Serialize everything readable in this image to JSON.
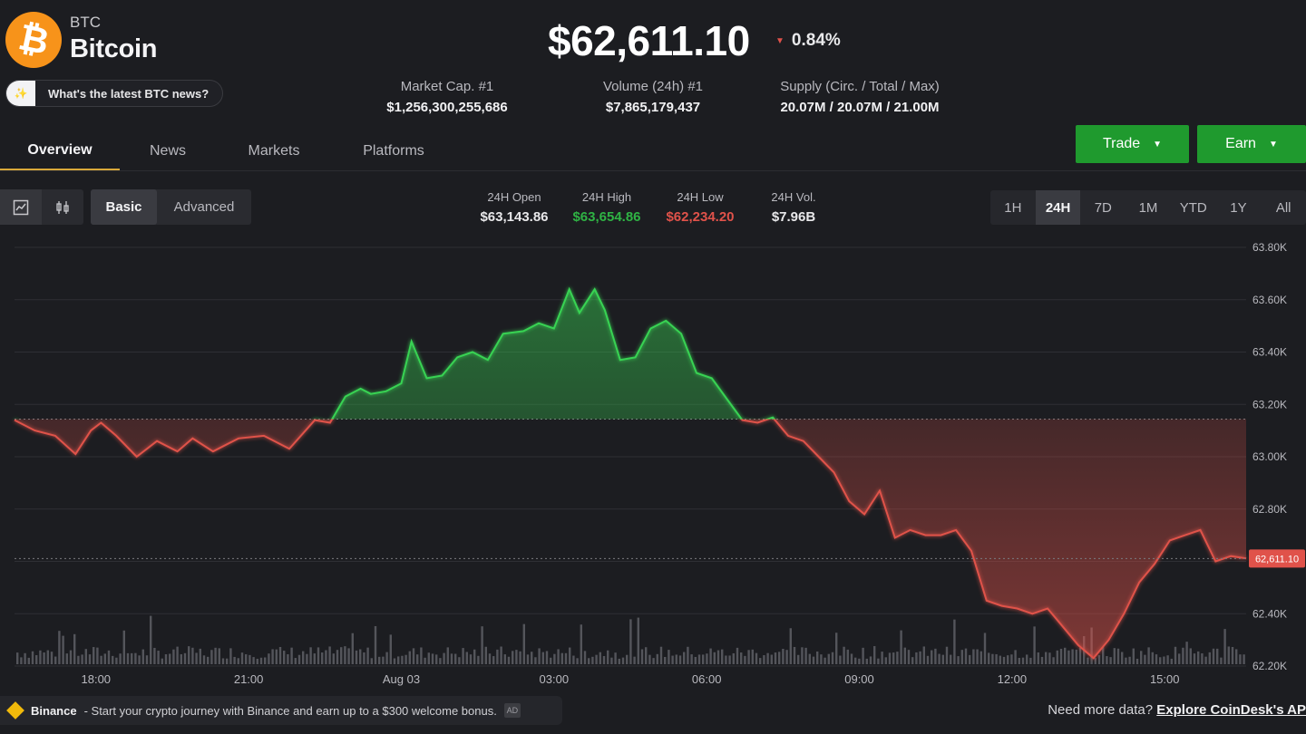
{
  "coin": {
    "ticker": "BTC",
    "name": "Bitcoin",
    "logo_glyph": "₿",
    "logo_color": "#f7931a"
  },
  "news_prompt": "What's the latest BTC news?",
  "price": {
    "value": "$62,611.10",
    "change": "0.84%",
    "direction": "down"
  },
  "stats": [
    {
      "label": "Market Cap. #1",
      "value": "$1,256,300,255,686"
    },
    {
      "label": "Volume (24h) #1",
      "value": "$7,865,179,437"
    },
    {
      "label": "Supply (Circ. / Total / Max)",
      "value": "20.07M / 20.07M / 21.00M"
    }
  ],
  "tabs": [
    {
      "label": "Overview",
      "active": true
    },
    {
      "label": "News",
      "active": false
    },
    {
      "label": "Markets",
      "active": false
    },
    {
      "label": "Platforms",
      "active": false
    }
  ],
  "actions": {
    "trade": "Trade",
    "earn": "Earn"
  },
  "chart_toolbar": {
    "icons": [
      "line-chart-icon",
      "candlestick-icon"
    ],
    "modes": [
      "Basic",
      "Advanced"
    ],
    "active_mode": "Basic"
  },
  "ohlc": [
    {
      "label": "24H Open",
      "value": "$63,143.86",
      "color": "#e8e8ea"
    },
    {
      "label": "24H High",
      "value": "$63,654.86",
      "color": "#2fb344"
    },
    {
      "label": "24H Low",
      "value": "$62,234.20",
      "color": "#e0524a"
    },
    {
      "label": "24H Vol.",
      "value": "$7.96B",
      "color": "#e8e8ea"
    }
  ],
  "ranges": [
    "1H",
    "24H",
    "7D",
    "1M",
    "YTD",
    "1Y",
    "All"
  ],
  "active_range": "24H",
  "colors": {
    "up": "#39d353",
    "down": "#e0524a",
    "button_green": "#1f9a2e",
    "accent_tab": "#d9a93a"
  },
  "chart_data": {
    "type": "line",
    "baseline": 63143.86,
    "current_label": "62,611.10",
    "ylim": [
      62200,
      63800
    ],
    "y_ticks": [
      "63.80K",
      "63.60K",
      "63.40K",
      "63.20K",
      "63.00K",
      "62.80K",
      "62.60K",
      "62.40K",
      "62.20K"
    ],
    "y_tick_values": [
      63800,
      63600,
      63400,
      63200,
      63000,
      62800,
      62600,
      62400,
      62200
    ],
    "x_labels": [
      "18:00",
      "21:00",
      "Aug 03",
      "03:00",
      "06:00",
      "09:00",
      "12:00",
      "15:00"
    ],
    "x_label_hours": [
      1,
      4,
      7,
      10,
      13,
      16,
      19,
      22
    ],
    "x_range_hours": [
      -0.6,
      23.6
    ],
    "series": [
      {
        "x": [
          -0.6,
          -0.2,
          0.2,
          0.6,
          0.9,
          1.1,
          1.4,
          1.8,
          2.2,
          2.6,
          2.9,
          3.3,
          3.8,
          4.3,
          4.8,
          5.3,
          5.6,
          5.9,
          6.2,
          6.4,
          6.7,
          7.0,
          7.2,
          7.5,
          7.8,
          8.1,
          8.4,
          8.7,
          9.0,
          9.4,
          9.7,
          10.0,
          10.3,
          10.5,
          10.8,
          11.0,
          11.3,
          11.6,
          11.9,
          12.2,
          12.5,
          12.8,
          13.1,
          13.4,
          13.7,
          14.0,
          14.3,
          14.6,
          14.9,
          15.2,
          15.5,
          15.8,
          16.1,
          16.4,
          16.7,
          17.0,
          17.3,
          17.6,
          17.9,
          18.2,
          18.5,
          18.8,
          19.1,
          19.4,
          19.7,
          20.0,
          20.3,
          20.6,
          20.9,
          21.2,
          21.5,
          21.8,
          22.1,
          22.4,
          22.7,
          23.0,
          23.3,
          23.6
        ],
        "y": [
          63140,
          63100,
          63080,
          63010,
          63100,
          63130,
          63080,
          63000,
          63060,
          63020,
          63070,
          63020,
          63070,
          63080,
          63030,
          63140,
          63130,
          63230,
          63260,
          63240,
          63250,
          63280,
          63440,
          63300,
          63310,
          63380,
          63400,
          63370,
          63470,
          63480,
          63510,
          63490,
          63640,
          63550,
          63640,
          63560,
          63370,
          63380,
          63490,
          63520,
          63470,
          63320,
          63300,
          63220,
          63140,
          63130,
          63150,
          63080,
          63060,
          63000,
          62940,
          62830,
          62780,
          62870,
          62690,
          62720,
          62700,
          62700,
          62720,
          62640,
          62450,
          62430,
          62420,
          62400,
          62420,
          62350,
          62280,
          62230,
          62300,
          62400,
          62520,
          62590,
          62680,
          62700,
          62720,
          62600,
          62620,
          62611
        ]
      }
    ]
  }
}
